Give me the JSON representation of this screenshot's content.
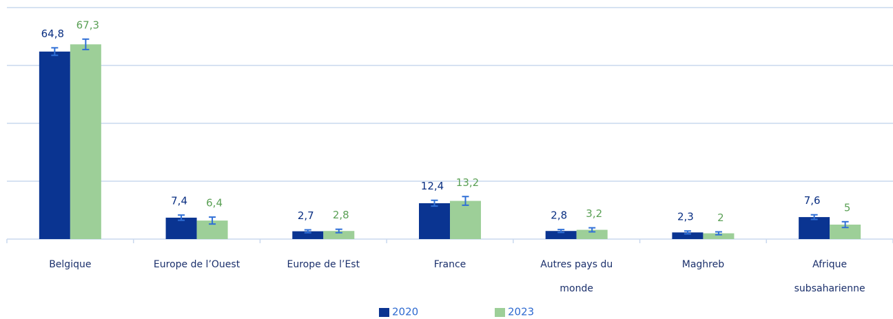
{
  "chart_data": {
    "type": "bar",
    "categories": [
      "Belgique",
      "Europe de l’Ouest",
      "Europe de l’Est",
      "France",
      "Autres pays du monde",
      "Maghreb",
      "Afrique subsaharienne"
    ],
    "series": [
      {
        "name": "2020",
        "color": "#0a3491",
        "label_color": "#0a2f82",
        "values": [
          64.8,
          7.4,
          2.7,
          12.4,
          2.8,
          2.3,
          7.6
        ],
        "value_labels": [
          "64,8",
          "7,4",
          "2,7",
          "12,4",
          "2,8",
          "2,3",
          "7,6"
        ],
        "errors": [
          1.3,
          0.9,
          0.5,
          1.0,
          0.5,
          0.5,
          0.8
        ]
      },
      {
        "name": "2023",
        "color": "#9dcf98",
        "label_color": "#5aa055",
        "values": [
          67.3,
          6.4,
          2.8,
          13.2,
          3.2,
          2,
          5
        ],
        "value_labels": [
          "67,3",
          "6,4",
          "2,8",
          "13,2",
          "3,2",
          "2",
          "5"
        ],
        "errors": [
          1.8,
          1.2,
          0.6,
          1.5,
          0.7,
          0.5,
          1.0
        ]
      }
    ],
    "error_color": "#2f6fd6",
    "ylim": [
      0,
      80
    ],
    "yticks": [
      0,
      20,
      40,
      60,
      80
    ],
    "grid": true,
    "legend": "bottom"
  }
}
